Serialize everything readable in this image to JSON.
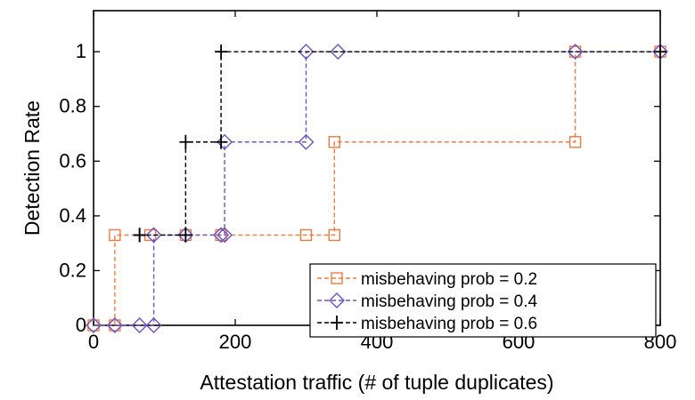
{
  "chart_data": {
    "type": "line",
    "title": "",
    "xlabel": "Attestation traffic (# of tuple duplicates)",
    "ylabel": "Detection Rate",
    "xlim": [
      0,
      800
    ],
    "ylim": [
      0,
      1.15
    ],
    "xticks": [
      0,
      200,
      400,
      600,
      800
    ],
    "xtick_labels": [
      "0",
      "200",
      "400",
      "600",
      "800"
    ],
    "yticks": [
      0,
      0.2,
      0.4,
      0.6,
      0.8,
      1
    ],
    "ytick_labels": [
      "0",
      "0.2",
      "0.4",
      "0.6",
      "0.8",
      "1"
    ],
    "grid": false,
    "legend_position": "bottom-right",
    "step": true,
    "series": [
      {
        "name": "misbehaving prob = 0.2",
        "color": "#f07a3c",
        "marker": "square",
        "x": [
          0,
          30,
          30,
          80,
          130,
          180,
          300,
          340,
          340,
          680,
          680,
          800
        ],
        "y": [
          0,
          0,
          0.33,
          0.33,
          0.33,
          0.33,
          0.33,
          0.33,
          0.67,
          0.67,
          1,
          1
        ]
      },
      {
        "name": "misbehaving prob = 0.4",
        "color": "#6b53c4",
        "marker": "diamond",
        "x": [
          0,
          30,
          65,
          85,
          85,
          130,
          180,
          185,
          185,
          300,
          300,
          345,
          680,
          800
        ],
        "y": [
          0,
          0,
          0,
          0,
          0.33,
          0.33,
          0.33,
          0.33,
          0.67,
          0.67,
          1,
          1,
          1,
          1
        ]
      },
      {
        "name": "misbehaving prob = 0.6",
        "color": "#000000",
        "marker": "plus",
        "x": [
          65,
          65,
          130,
          130,
          180,
          180,
          800
        ],
        "y": [
          0.33,
          0.33,
          0.33,
          0.67,
          0.67,
          1,
          1
        ]
      }
    ]
  }
}
